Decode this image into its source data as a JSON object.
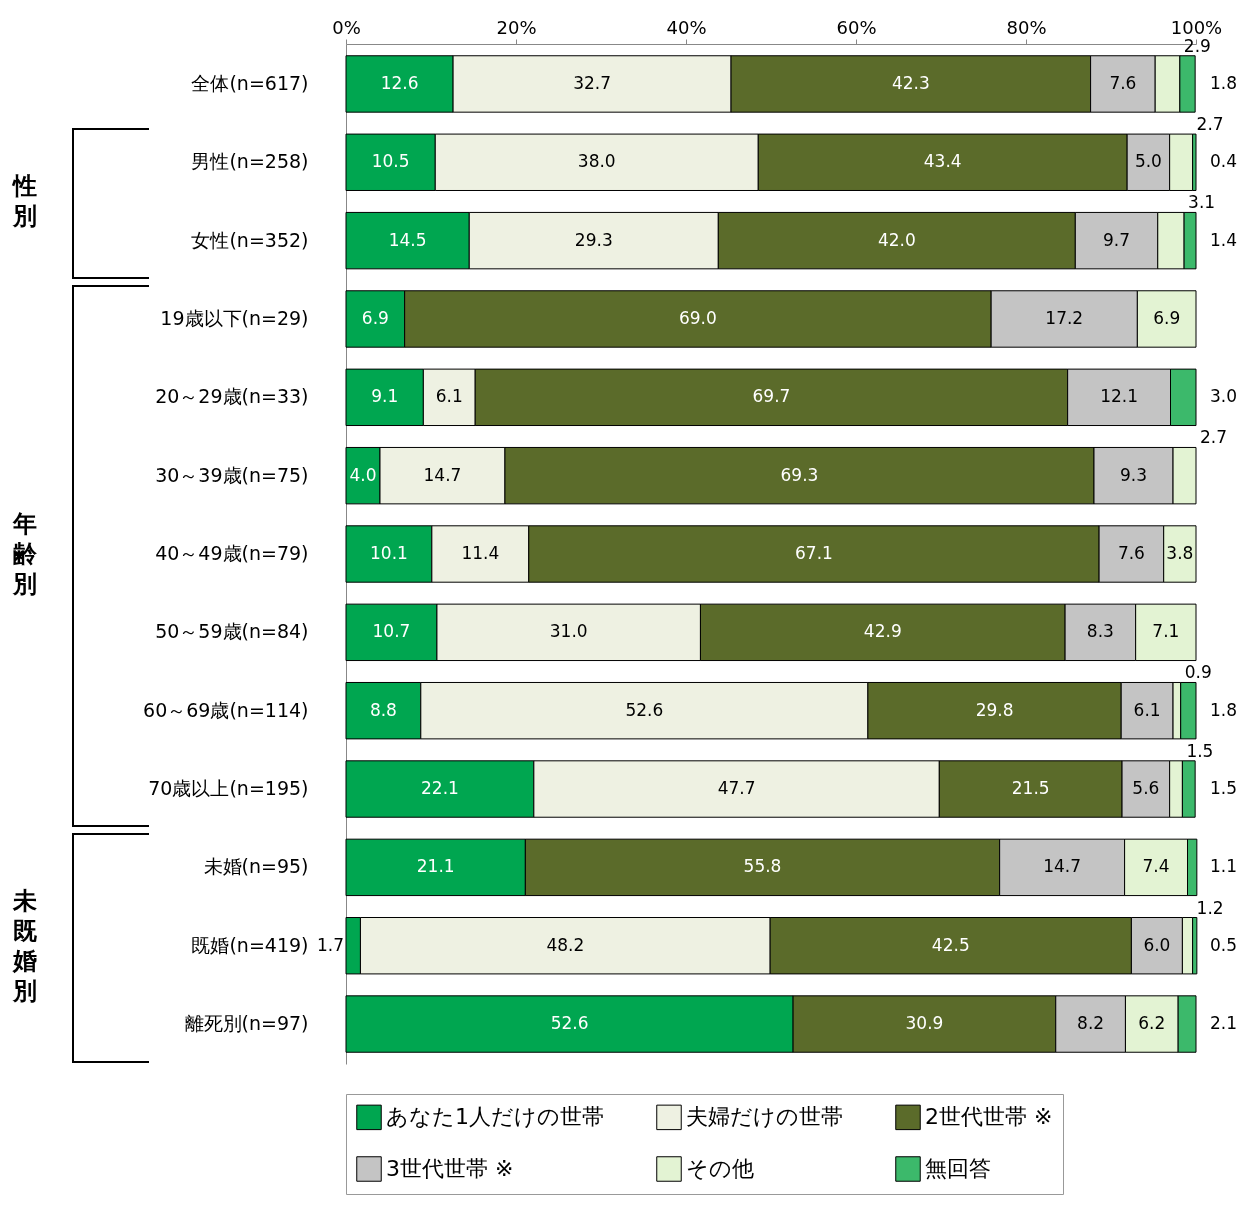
{
  "chart_data": {
    "type": "bar",
    "orientation": "horizontal",
    "stacked": true,
    "categories": [
      "全体(n=617)",
      "男性(n=258)",
      "女性(n=352)",
      "19歳以下(n=29)",
      "20～29歳(n=33)",
      "30～39歳(n=75)",
      "40～49歳(n=79)",
      "50～59歳(n=84)",
      "60～69歳(n=114)",
      "70歳以上(n=195)",
      "未婚(n=95)",
      "既婚(n=419)",
      "離死別(n=97)"
    ],
    "series": [
      {
        "name": "あなた1人だけの世帯",
        "color": "#00a650",
        "values": [
          12.6,
          10.5,
          14.5,
          6.9,
          9.1,
          4.0,
          10.1,
          10.7,
          8.8,
          22.1,
          21.1,
          1.7,
          52.6
        ],
        "value_labels": [
          "12.6",
          "10.5",
          "14.5",
          "6.9",
          "9.1",
          "4.0",
          "10.1",
          "10.7",
          "8.8",
          "22.1",
          "21.1",
          "1.7",
          "52.6"
        ]
      },
      {
        "name": "夫婦だけの世帯",
        "color": "#eef1e2",
        "values": [
          32.7,
          38.0,
          29.3,
          null,
          6.1,
          14.7,
          11.4,
          31.0,
          52.6,
          47.7,
          null,
          48.2,
          null
        ],
        "value_labels": [
          "32.7",
          "38.0",
          "29.3",
          null,
          "6.1",
          "14.7",
          "11.4",
          "31.0",
          "52.6",
          "47.7",
          null,
          "48.2",
          null
        ]
      },
      {
        "name": "2世代世帯 ※",
        "color": "#5b6b2a",
        "values": [
          42.3,
          43.4,
          42.0,
          69.0,
          69.7,
          69.3,
          67.1,
          42.9,
          29.8,
          21.5,
          55.8,
          42.5,
          30.9
        ],
        "value_labels": [
          "42.3",
          "43.4",
          "42.0",
          "69.0",
          "69.7",
          "69.3",
          "67.1",
          "42.9",
          "29.8",
          "21.5",
          "55.8",
          "42.5",
          "30.9"
        ]
      },
      {
        "name": "3世代世帯 ※",
        "color": "#c4c4c4",
        "values": [
          7.6,
          5.0,
          9.7,
          17.2,
          12.1,
          9.3,
          7.6,
          8.3,
          6.1,
          5.6,
          14.7,
          6.0,
          8.2
        ],
        "value_labels": [
          "7.6",
          "5.0",
          "9.7",
          "17.2",
          "12.1",
          "9.3",
          "7.6",
          "8.3",
          "6.1",
          "5.6",
          "14.7",
          "6.0",
          "8.2"
        ]
      },
      {
        "name": "その他",
        "color": "#e3f3d3",
        "values": [
          2.9,
          2.7,
          3.1,
          6.9,
          null,
          2.7,
          3.8,
          7.1,
          0.9,
          1.5,
          7.4,
          1.2,
          6.2
        ],
        "value_labels": [
          "2.9",
          "2.7",
          "3.1",
          "6.9",
          null,
          "2.7",
          "3.8",
          "7.1",
          "0.9",
          "1.5",
          "7.4",
          "1.2",
          "6.2"
        ]
      },
      {
        "name": "無回答",
        "color": "#3cb96b",
        "values": [
          1.8,
          0.4,
          1.4,
          null,
          3.0,
          null,
          null,
          null,
          1.8,
          1.5,
          1.1,
          0.5,
          2.1
        ],
        "value_labels": [
          "1.8",
          "0.4",
          "1.4",
          null,
          "3.0",
          null,
          null,
          null,
          "1.8",
          "1.5",
          "1.1",
          "0.5",
          "2.1"
        ]
      }
    ],
    "xlim": [
      0,
      100
    ],
    "xticks": [
      {
        "value": 0,
        "label": "0%"
      },
      {
        "value": 20,
        "label": "20%"
      },
      {
        "value": 40,
        "label": "40%"
      },
      {
        "value": 60,
        "label": "60%"
      },
      {
        "value": 80,
        "label": "80%"
      },
      {
        "value": 100,
        "label": "100%"
      }
    ],
    "grid": false,
    "legend": "bottom",
    "annotations": [
      "性別",
      "年齢別",
      "未既婚別"
    ]
  }
}
